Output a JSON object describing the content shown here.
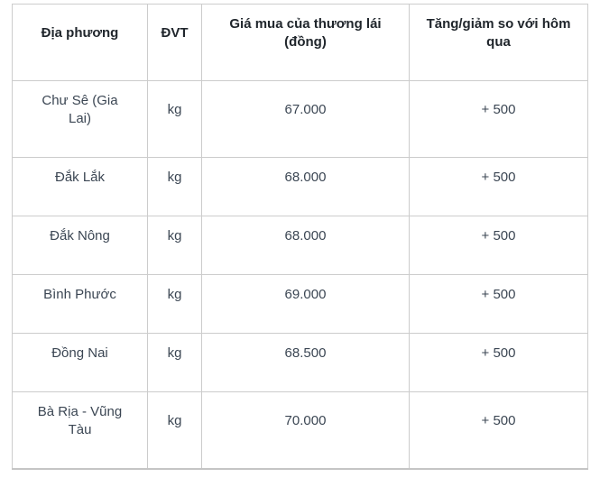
{
  "chart_data": {
    "type": "table",
    "columns": [
      "Địa phương",
      "ĐVT",
      "Giá mua của thương lái\n(đồng)",
      "Tăng/giảm so với hôm\nqua"
    ],
    "rows": [
      [
        "Chư Sê (Gia\nLai)",
        "kg",
        "67.000",
        "+ 500"
      ],
      [
        "Đắk Lắk",
        "kg",
        "68.000",
        "+ 500"
      ],
      [
        "Đắk Nông",
        "kg",
        "68.000",
        "+ 500"
      ],
      [
        "Bình Phước",
        "kg",
        "69.000",
        "+ 500"
      ],
      [
        "Đồng Nai",
        "kg",
        "68.500",
        "+ 500"
      ],
      [
        "Bà Rịa - Vũng\nTàu",
        "kg",
        "70.000",
        "+ 500"
      ]
    ]
  },
  "colors": {
    "header_text": "#20262c",
    "body_text": "#3b4653",
    "border": "#cccccc",
    "page_bg": "#ffffff"
  }
}
